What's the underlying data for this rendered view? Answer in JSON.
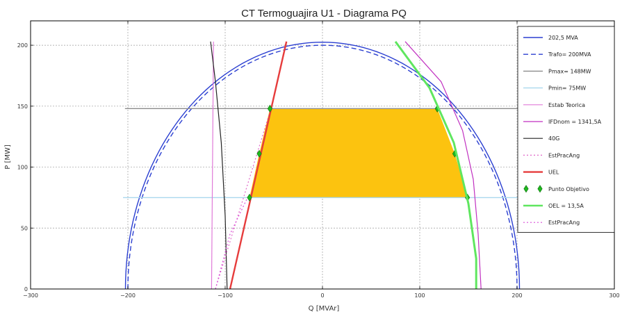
{
  "chart_data": {
    "type": "line",
    "title": "CT Termoguajira U1 - Diagrama PQ",
    "xlabel": "Q [MVAr]",
    "ylabel": "P [MW]",
    "xlim": [
      -300,
      300
    ],
    "ylim": [
      0,
      220
    ],
    "xticks": [
      -300,
      -200,
      -100,
      0,
      100,
      200,
      300
    ],
    "yticks": [
      0,
      50,
      100,
      150,
      200
    ],
    "grid": true,
    "legend_position": "right",
    "series": [
      {
        "name": "202,5 MVA",
        "color": "#2b3fd1",
        "style": "solid",
        "width": 1.4,
        "kind": "circle",
        "radius": 202.5
      },
      {
        "name": "Trafo= 200MVA",
        "color": "#2b3fd1",
        "style": "dashed",
        "width": 1.4,
        "kind": "circle",
        "radius": 200
      },
      {
        "name": "Pmax= 148MW",
        "color": "#8c8c8c",
        "style": "solid",
        "width": 1.4,
        "kind": "hline",
        "y": 148,
        "x": [
          -203,
          203
        ]
      },
      {
        "name": "Pmin= 75MW",
        "color": "#a9d8ee",
        "style": "solid",
        "width": 1.4,
        "kind": "hline",
        "y": 75,
        "x": [
          -205,
          205
        ]
      },
      {
        "name": "Estab Teorica",
        "color": "#e07ad8",
        "style": "solid",
        "width": 1.2,
        "kind": "line",
        "x": [
          -114,
          -112
        ],
        "y": [
          0,
          203
        ]
      },
      {
        "name": "IFDnom = 1341,5A",
        "color": "#c02fc0",
        "style": "solid",
        "width": 1.2,
        "kind": "line",
        "x": [
          85,
          122,
          144,
          155,
          160,
          163
        ],
        "y": [
          203,
          170,
          130,
          90,
          45,
          0
        ]
      },
      {
        "name": "40G",
        "color": "#222222",
        "style": "solid",
        "width": 1.2,
        "kind": "line",
        "x": [
          -115,
          -110,
          -104,
          -100,
          -98
        ],
        "y": [
          203,
          170,
          120,
          60,
          0
        ]
      },
      {
        "name": "EstPracAng",
        "color": "#e066c8",
        "style": "dotted",
        "width": 1.2,
        "kind": "line",
        "x": [
          -110,
          -53
        ],
        "y": [
          0,
          148
        ]
      },
      {
        "name": "UEL",
        "color": "#e63c3c",
        "style": "solid",
        "width": 2.4,
        "kind": "line",
        "x": [
          -95,
          -37
        ],
        "y": [
          0,
          203
        ]
      },
      {
        "name": "Punto Objetivo",
        "color": "#1fb81f",
        "style": "marker",
        "kind": "points",
        "x": [
          -75,
          -65,
          -54,
          118,
          136,
          149
        ],
        "y": [
          75,
          111,
          148,
          148,
          111,
          75
        ]
      },
      {
        "name": "OEL = 13,5A",
        "color": "#5fe65f",
        "style": "solid",
        "width": 3,
        "kind": "line",
        "x": [
          75,
          110,
          135,
          150,
          158,
          158
        ],
        "y": [
          203,
          165,
          120,
          70,
          25,
          0
        ]
      },
      {
        "name": "EstPracAng",
        "color": "#d94fd9",
        "style": "dotted",
        "width": 1.2,
        "kind": "line",
        "x": [
          -110,
          -95,
          -77
        ],
        "y": [
          0,
          45,
          75
        ]
      }
    ],
    "region": {
      "color": "#fcc30f",
      "x": [
        -75,
        -65,
        -54,
        118,
        136,
        149
      ],
      "y": [
        75,
        111,
        148,
        148,
        111,
        75
      ]
    }
  }
}
